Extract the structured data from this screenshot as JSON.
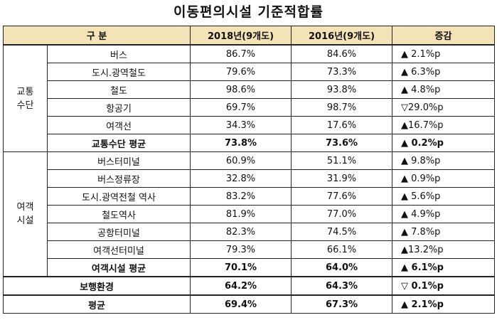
{
  "title": "이동편의시설 기준적합률",
  "headers": {
    "category": "구  분",
    "y2018": "2018년(9개도)",
    "y2016": "2016년(9개도)",
    "change": "증감"
  },
  "groups": [
    {
      "label_line1": "교통",
      "label_line2": "수단",
      "rows": [
        {
          "name": "버스",
          "y2018": "86.7%",
          "y2016": "84.6%",
          "change": "▲  2.1%p"
        },
        {
          "name": "도시.광역철도",
          "y2018": "79.6%",
          "y2016": "73.3%",
          "change": "▲  6.3%p"
        },
        {
          "name": "철도",
          "y2018": "98.6%",
          "y2016": "93.8%",
          "change": "▲  4.8%p"
        },
        {
          "name": "항공기",
          "y2018": "69.7%",
          "y2016": "98.7%",
          "change": "▽29.0%p"
        },
        {
          "name": "여객선",
          "y2018": "34.3%",
          "y2016": "17.6%",
          "change": "▲16.7%p"
        }
      ],
      "avg": {
        "name": "교통수단 평균",
        "y2018": "73.8%",
        "y2016": "73.6%",
        "change": "▲  0.2%p"
      }
    },
    {
      "label_line1": "여객",
      "label_line2": "시설",
      "rows": [
        {
          "name": "버스터미널",
          "y2018": "60.9%",
          "y2016": "51.1%",
          "change": "▲  9.8%p"
        },
        {
          "name": "버스정류장",
          "y2018": "32.8%",
          "y2016": "31.9%",
          "change": "▲  0.9%p"
        },
        {
          "name": "도시.광역전철 역사",
          "y2018": "83.2%",
          "y2016": "77.6%",
          "change": "▲  5.6%p"
        },
        {
          "name": "철도역사",
          "y2018": "81.9%",
          "y2016": "77.0%",
          "change": "▲  4.9%p"
        },
        {
          "name": "공항터미널",
          "y2018": "82.3%",
          "y2016": "74.5%",
          "change": "▲  7.8%p"
        },
        {
          "name": "여객선터미널",
          "y2018": "79.3%",
          "y2016": "66.1%",
          "change": "▲13.2%p"
        }
      ],
      "avg": {
        "name": "여객시설 평균",
        "y2018": "70.1%",
        "y2016": "64.0%",
        "change": "▲  6.1%p"
      }
    }
  ],
  "walking": {
    "name": "보행환경",
    "y2018": "64.2%",
    "y2016": "64.3%",
    "change": "▽  0.1%p"
  },
  "total": {
    "name": "평균",
    "y2018": "69.4%",
    "y2016": "67.3%",
    "change": "▲  2.1%p"
  }
}
